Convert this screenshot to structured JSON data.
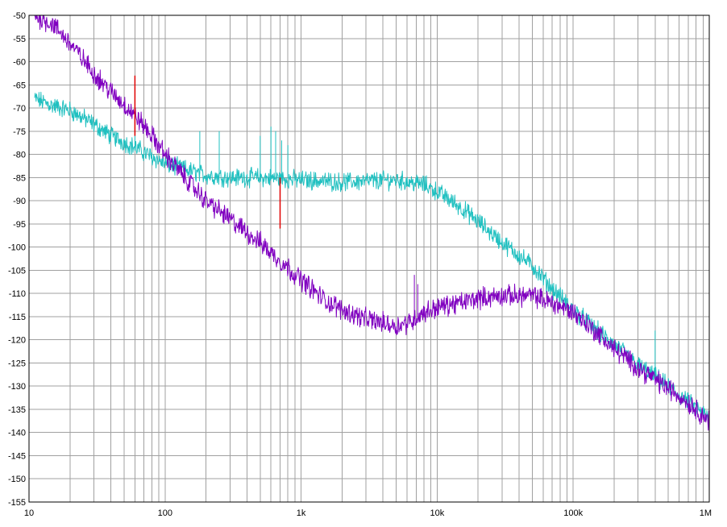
{
  "chart_data": {
    "type": "line",
    "title": "",
    "xlabel": "",
    "ylabel": "",
    "x_scale": "log",
    "xlim": [
      10,
      1000000
    ],
    "ylim": [
      -155,
      -50
    ],
    "grid": true,
    "legend": "none",
    "x_ticks": [
      {
        "value": 10,
        "label": "10"
      },
      {
        "value": 100,
        "label": "100"
      },
      {
        "value": 1000,
        "label": "1k"
      },
      {
        "value": 10000,
        "label": "10k"
      },
      {
        "value": 100000,
        "label": "100k"
      },
      {
        "value": 1000000,
        "label": "1M"
      }
    ],
    "y_ticks": [
      -50,
      -55,
      -60,
      -65,
      -70,
      -75,
      -80,
      -85,
      -90,
      -95,
      -100,
      -105,
      -110,
      -115,
      -120,
      -125,
      -130,
      -135,
      -140,
      -145,
      -150,
      -155
    ],
    "series": [
      {
        "color": "#20c0c0",
        "noise_amplitude": 1.6,
        "points": [
          [
            11,
            -68
          ],
          [
            15,
            -69.5
          ],
          [
            20,
            -70.5
          ],
          [
            30,
            -73.5
          ],
          [
            40,
            -76
          ],
          [
            60,
            -78.5
          ],
          [
            80,
            -80.5
          ],
          [
            100,
            -82
          ],
          [
            150,
            -83.5
          ],
          [
            200,
            -84.5
          ],
          [
            300,
            -85
          ],
          [
            500,
            -85
          ],
          [
            1000,
            -85.5
          ],
          [
            2000,
            -86
          ],
          [
            5000,
            -85.5
          ],
          [
            8000,
            -86.5
          ],
          [
            10000,
            -88
          ],
          [
            15000,
            -91.5
          ],
          [
            20000,
            -94.5
          ],
          [
            30000,
            -99
          ],
          [
            50000,
            -104
          ],
          [
            70000,
            -109
          ],
          [
            100000,
            -113.5
          ],
          [
            150000,
            -118
          ],
          [
            200000,
            -121
          ],
          [
            300000,
            -125.5
          ],
          [
            500000,
            -130
          ],
          [
            700000,
            -133.5
          ],
          [
            1000000,
            -137
          ]
        ],
        "spikes": [
          [
            60,
            -71
          ],
          [
            180,
            -75
          ],
          [
            250,
            -75
          ],
          [
            500,
            -76
          ],
          [
            600,
            -74
          ],
          [
            650,
            -75
          ],
          [
            720,
            -77
          ],
          [
            800,
            -78
          ],
          [
            400000,
            -118
          ]
        ]
      },
      {
        "color": "#8000c0",
        "noise_amplitude": 1.8,
        "points": [
          [
            11,
            -50
          ],
          [
            15,
            -52
          ],
          [
            20,
            -56
          ],
          [
            30,
            -62.5
          ],
          [
            40,
            -66.5
          ],
          [
            60,
            -71.5
          ],
          [
            80,
            -76
          ],
          [
            100,
            -80
          ],
          [
            150,
            -86
          ],
          [
            200,
            -90
          ],
          [
            300,
            -94
          ],
          [
            500,
            -99
          ],
          [
            700,
            -103
          ],
          [
            1000,
            -107
          ],
          [
            1500,
            -111.5
          ],
          [
            2000,
            -113.5
          ],
          [
            3000,
            -115.5
          ],
          [
            5000,
            -117
          ],
          [
            6500,
            -116
          ],
          [
            7500,
            -114.5
          ],
          [
            10000,
            -113
          ],
          [
            15000,
            -112
          ],
          [
            20000,
            -111
          ],
          [
            30000,
            -110.5
          ],
          [
            50000,
            -110.5
          ],
          [
            70000,
            -112
          ],
          [
            100000,
            -114
          ],
          [
            150000,
            -118.5
          ],
          [
            200000,
            -122
          ],
          [
            300000,
            -126
          ],
          [
            500000,
            -130.5
          ],
          [
            700000,
            -133.5
          ],
          [
            1000000,
            -137.5
          ]
        ],
        "spikes": [
          [
            6800,
            -106
          ],
          [
            7200,
            -108
          ]
        ]
      },
      {
        "color": "#e00000",
        "points": [
          [
            60,
            -76
          ],
          [
            60,
            -63
          ]
        ]
      },
      {
        "color": "#e00000",
        "points": [
          [
            700,
            -96
          ],
          [
            700,
            -85
          ]
        ]
      }
    ]
  }
}
